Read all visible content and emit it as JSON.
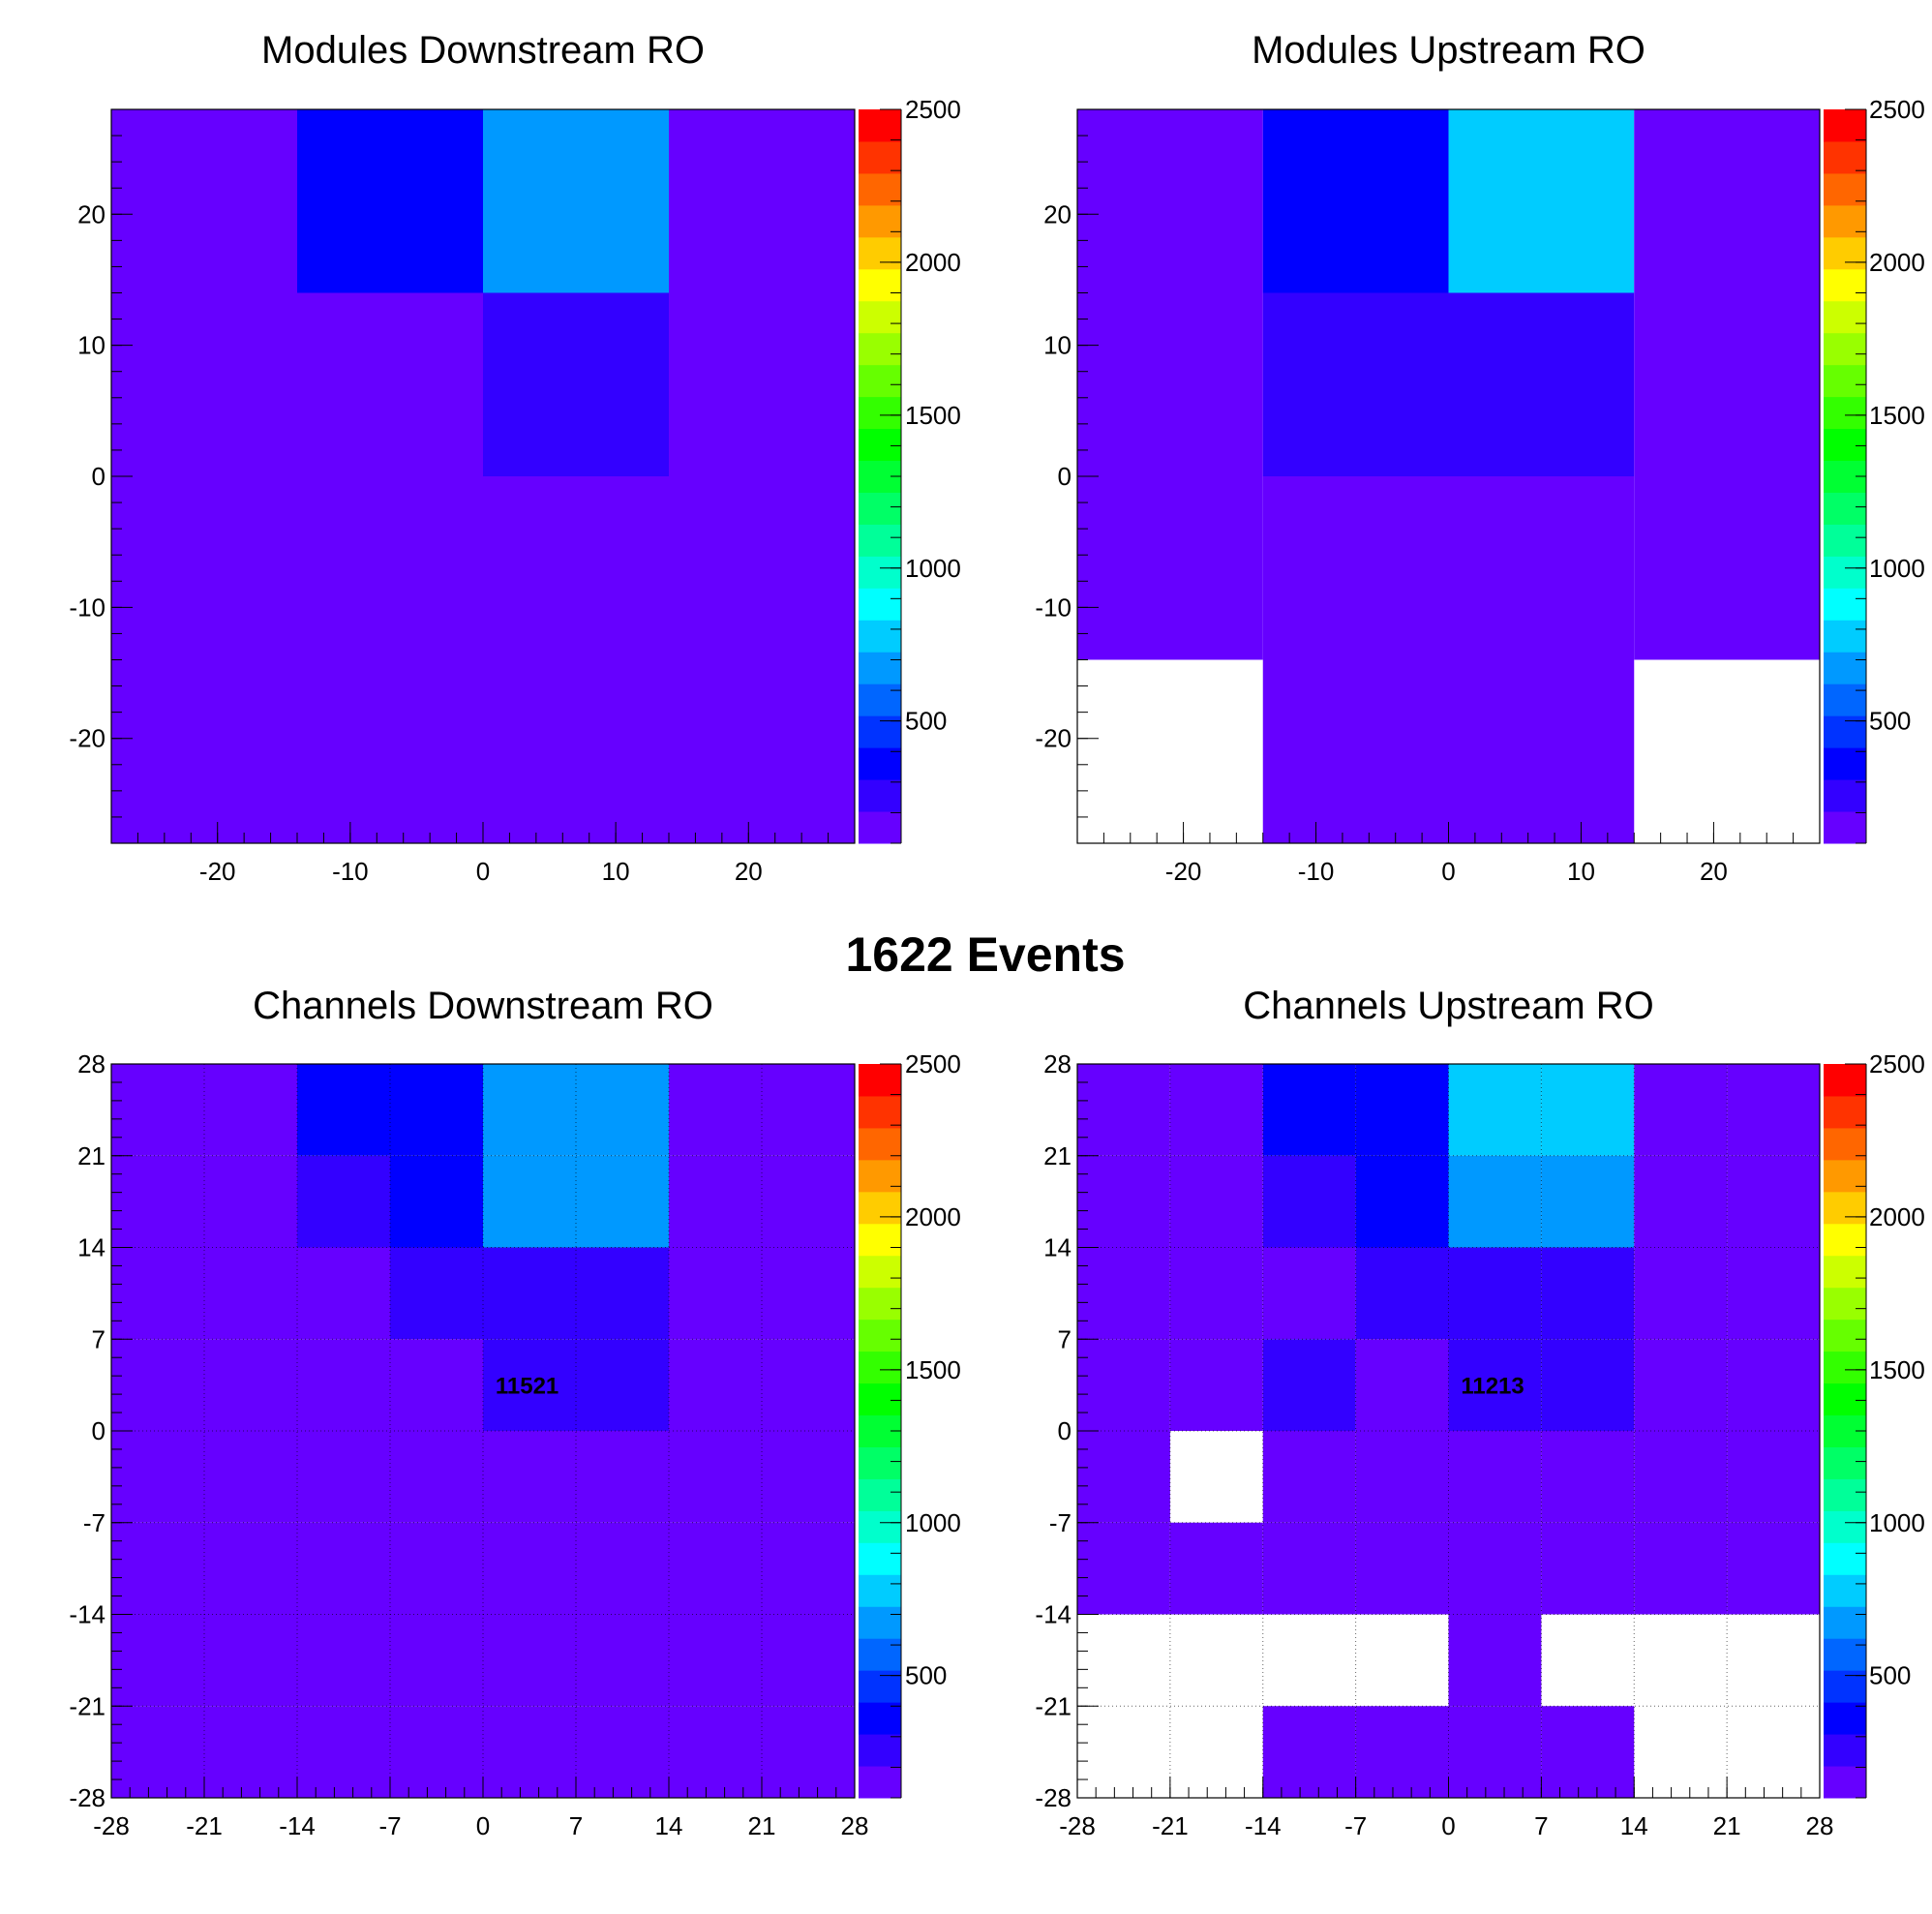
{
  "page": {
    "events_title": "1622 Events"
  },
  "palette": {
    "colors": [
      "#6600ff",
      "#3300ff",
      "#0000ff",
      "#0033ff",
      "#0066ff",
      "#0099ff",
      "#00ccff",
      "#00ffff",
      "#00ffcc",
      "#00ff99",
      "#00ff66",
      "#00ff33",
      "#00ff00",
      "#33ff00",
      "#66ff00",
      "#99ff00",
      "#ccff00",
      "#ffff00",
      "#ffcc00",
      "#ff9900",
      "#ff6600",
      "#ff3300",
      "#ff0000"
    ],
    "min": 100,
    "max": 2500,
    "ticks": [
      "500",
      "1000",
      "1500",
      "2000",
      "2500"
    ],
    "tick_values": [
      500,
      1000,
      1500,
      2000,
      2500
    ]
  },
  "chart_data": [
    {
      "type": "heatmap",
      "title": "Modules Downstream RO",
      "xlim": [
        -28,
        28
      ],
      "ylim": [
        -28,
        28
      ],
      "x_edges": [
        -28,
        -14,
        0,
        14,
        28
      ],
      "y_edges": [
        -28,
        -14,
        0,
        14,
        28
      ],
      "x_ticks": [
        "-20",
        "-10",
        "0",
        "10",
        "20"
      ],
      "x_tick_values": [
        -20,
        -10,
        0,
        10,
        20
      ],
      "y_ticks": [
        "20",
        "10",
        "0",
        "-10",
        "-20"
      ],
      "y_tick_values": [
        20,
        10,
        0,
        -10,
        -20
      ],
      "grid": false,
      "values_top_to_bottom": [
        [
          150,
          400,
          700,
          150
        ],
        [
          150,
          150,
          300,
          150
        ],
        [
          150,
          150,
          150,
          150
        ],
        [
          150,
          150,
          150,
          150
        ]
      ],
      "annotation": ""
    },
    {
      "type": "heatmap",
      "title": "Modules Upstream RO",
      "xlim": [
        -28,
        28
      ],
      "ylim": [
        -28,
        28
      ],
      "x_edges": [
        -28,
        -14,
        0,
        14,
        28
      ],
      "y_edges": [
        -28,
        -14,
        0,
        14,
        28
      ],
      "x_ticks": [
        "-20",
        "-10",
        "0",
        "10",
        "20"
      ],
      "x_tick_values": [
        -20,
        -10,
        0,
        10,
        20
      ],
      "y_ticks": [
        "20",
        "10",
        "0",
        "-10",
        "-20"
      ],
      "y_tick_values": [
        20,
        10,
        0,
        -10,
        -20
      ],
      "grid": false,
      "values_top_to_bottom": [
        [
          150,
          400,
          800,
          150
        ],
        [
          150,
          300,
          300,
          150
        ],
        [
          150,
          150,
          150,
          150
        ],
        [
          null,
          150,
          150,
          null
        ]
      ],
      "annotation": ""
    },
    {
      "type": "heatmap",
      "title": "Channels Downstream RO",
      "xlim": [
        -28,
        28
      ],
      "ylim": [
        -28,
        28
      ],
      "x_edges": [
        -28,
        -21,
        -14,
        -7,
        0,
        7,
        14,
        21,
        28
      ],
      "y_edges": [
        -28,
        -21,
        -14,
        -7,
        0,
        7,
        14,
        21,
        28
      ],
      "x_ticks": [
        "-28",
        "-21",
        "-14",
        "-7",
        "0",
        "7",
        "14",
        "21",
        "28"
      ],
      "x_tick_values": [
        -28,
        -21,
        -14,
        -7,
        0,
        7,
        14,
        21,
        28
      ],
      "y_ticks": [
        "28",
        "21",
        "14",
        "7",
        "0",
        "-7",
        "-14",
        "-21",
        "-28"
      ],
      "y_tick_values": [
        28,
        21,
        14,
        7,
        0,
        -7,
        -14,
        -21,
        -28
      ],
      "grid": true,
      "values_top_to_bottom": [
        [
          150,
          150,
          400,
          400,
          700,
          700,
          150,
          150
        ],
        [
          150,
          150,
          300,
          400,
          700,
          700,
          150,
          150
        ],
        [
          150,
          150,
          150,
          300,
          300,
          300,
          150,
          150
        ],
        [
          150,
          150,
          150,
          150,
          300,
          300,
          150,
          150
        ],
        [
          150,
          150,
          150,
          150,
          150,
          150,
          150,
          150
        ],
        [
          150,
          150,
          150,
          150,
          150,
          150,
          150,
          150
        ],
        [
          150,
          150,
          150,
          150,
          150,
          150,
          150,
          150
        ],
        [
          150,
          150,
          150,
          150,
          150,
          150,
          150,
          150
        ]
      ],
      "annotation": "11521",
      "annotation_x": 1.5,
      "annotation_y": 3.5
    },
    {
      "type": "heatmap",
      "title": "Channels Upstream RO",
      "xlim": [
        -28,
        28
      ],
      "ylim": [
        -28,
        28
      ],
      "x_edges": [
        -28,
        -21,
        -14,
        -7,
        0,
        7,
        14,
        21,
        28
      ],
      "y_edges": [
        -28,
        -21,
        -14,
        -7,
        0,
        7,
        14,
        21,
        28
      ],
      "x_ticks": [
        "-28",
        "-21",
        "-14",
        "-7",
        "0",
        "7",
        "14",
        "21",
        "28"
      ],
      "x_tick_values": [
        -28,
        -21,
        -14,
        -7,
        0,
        7,
        14,
        21,
        28
      ],
      "y_ticks": [
        "28",
        "21",
        "14",
        "7",
        "0",
        "-7",
        "-14",
        "-21",
        "-28"
      ],
      "y_tick_values": [
        28,
        21,
        14,
        7,
        0,
        -7,
        -14,
        -21,
        -28
      ],
      "grid": true,
      "values_top_to_bottom": [
        [
          150,
          150,
          400,
          400,
          800,
          800,
          150,
          150
        ],
        [
          150,
          150,
          300,
          400,
          700,
          700,
          150,
          150
        ],
        [
          150,
          150,
          150,
          300,
          300,
          300,
          150,
          150
        ],
        [
          150,
          150,
          300,
          150,
          300,
          300,
          150,
          150
        ],
        [
          150,
          null,
          150,
          150,
          150,
          150,
          150,
          150
        ],
        [
          150,
          150,
          150,
          150,
          150,
          150,
          150,
          150
        ],
        [
          null,
          null,
          null,
          null,
          150,
          null,
          null,
          null
        ],
        [
          null,
          null,
          150,
          150,
          150,
          150,
          null,
          null
        ]
      ],
      "annotation": "11213",
      "annotation_x": 1.5,
      "annotation_y": 3.5
    }
  ]
}
